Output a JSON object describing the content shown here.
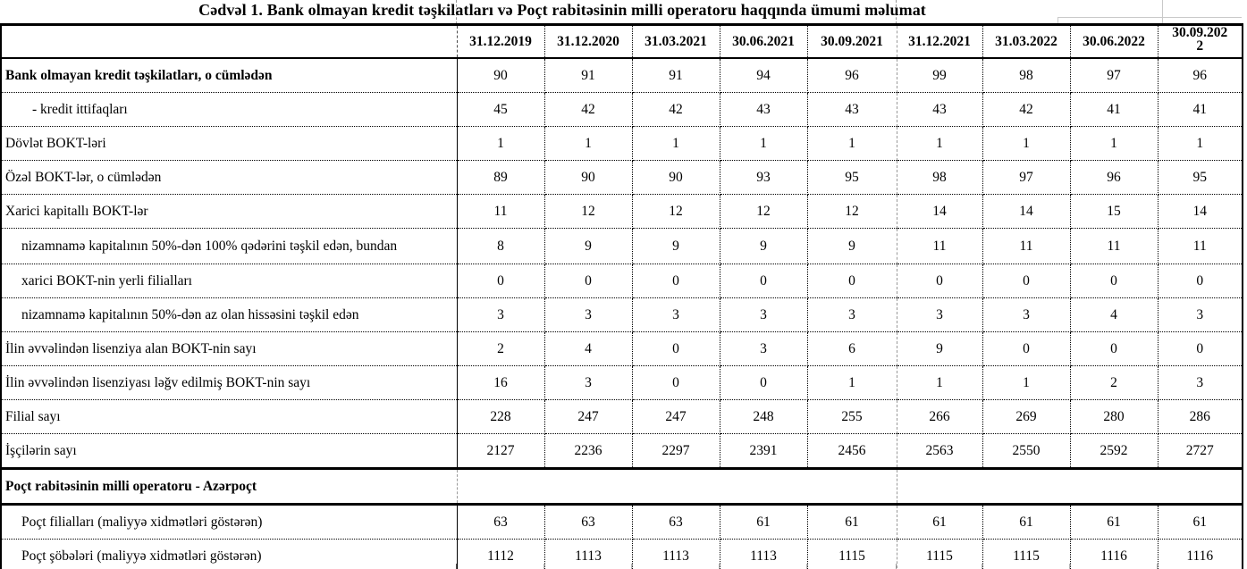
{
  "title": "Cədvəl 1. Bank olmayan kredit təşkilatları və Poçt rabitəsinin milli operatoru haqqında ümumi məlumat",
  "colors": {
    "text": "#000000",
    "border": "#000000",
    "page_break_line": "#9a9a9a",
    "gridline": "#c9c9c9",
    "background": "#ffffff"
  },
  "chart_data": {
    "type": "table",
    "title": "Cədvəl 1. Bank olmayan kredit təşkilatları və Poçt rabitəsinin milli operatoru haqqında ümumi məlumat",
    "columns": [
      "31.12.2019",
      "31.12.2020",
      "31.03.2021",
      "30.06.2021",
      "30.09.2021",
      "31.12.2021",
      "31.03.2022",
      "30.06.2022",
      "30.09.2022"
    ],
    "rows": [
      {
        "label": "Bank olmayan kredit təşkilatları, o cümlədən",
        "bold": true,
        "indent": 0,
        "values": [
          90,
          91,
          91,
          94,
          96,
          99,
          98,
          97,
          96
        ]
      },
      {
        "label": "- kredit ittifaqları",
        "bold": false,
        "indent": 1,
        "values": [
          45,
          42,
          42,
          43,
          43,
          43,
          42,
          41,
          41
        ]
      },
      {
        "label": "Dövlət BOKT-ləri",
        "bold": false,
        "indent": 0,
        "values": [
          1,
          1,
          1,
          1,
          1,
          1,
          1,
          1,
          1
        ]
      },
      {
        "label": "Özəl BOKT-lər, o cümlədən",
        "bold": false,
        "indent": 0,
        "values": [
          89,
          90,
          90,
          93,
          95,
          98,
          97,
          96,
          95
        ]
      },
      {
        "label": "Xarici kapitallı BOKT-lər",
        "bold": false,
        "indent": 0,
        "values": [
          11,
          12,
          12,
          12,
          12,
          14,
          14,
          15,
          14
        ]
      },
      {
        "label": "nizamnamə kapitalının 50%-dən 100% qədərini təşkil edən, bundan",
        "bold": false,
        "indent": 2,
        "twoline": true,
        "values": [
          8,
          9,
          9,
          9,
          9,
          11,
          11,
          11,
          11
        ]
      },
      {
        "label": "xarici BOKT-nin yerli filialları",
        "bold": false,
        "indent": 2,
        "values": [
          0,
          0,
          0,
          0,
          0,
          0,
          0,
          0,
          0
        ]
      },
      {
        "label": "nizamnamə kapitalının 50%-dən az olan hissəsini  təşkil edən",
        "bold": false,
        "indent": 2,
        "values": [
          3,
          3,
          3,
          3,
          3,
          3,
          3,
          4,
          3
        ]
      },
      {
        "label": "İlin əvvəlindən lisenziya alan BOKT-nin sayı",
        "bold": false,
        "indent": 0,
        "values": [
          2,
          4,
          0,
          3,
          6,
          9,
          0,
          0,
          0
        ]
      },
      {
        "label": "İlin əvvəlindən lisenziyası ləğv edilmiş BOKT-nin sayı",
        "bold": false,
        "indent": 0,
        "values": [
          16,
          3,
          0,
          0,
          1,
          1,
          1,
          2,
          3
        ]
      },
      {
        "label": "Filial sayı",
        "bold": false,
        "indent": 0,
        "values": [
          228,
          247,
          247,
          248,
          255,
          266,
          269,
          280,
          286
        ]
      },
      {
        "label": "İşçilərin sayı",
        "bold": false,
        "indent": 0,
        "values": [
          2127,
          2236,
          2297,
          2391,
          2456,
          2563,
          2550,
          2592,
          2727
        ]
      },
      {
        "label": "Poçt rabitəsinin milli operatoru - Azərpoçt",
        "bold": true,
        "indent": 0,
        "section": true,
        "values": [
          "",
          "",
          "",
          "",
          "",
          "",
          "",
          "",
          ""
        ]
      },
      {
        "label": "Poçt filialları (maliyyə xidmətləri göstərən)",
        "bold": false,
        "indent": 2,
        "values": [
          63,
          63,
          63,
          61,
          61,
          61,
          61,
          61,
          61
        ]
      },
      {
        "label": "Poçt şöbələri (maliyyə xidmətləri göstərən)",
        "bold": false,
        "indent": 2,
        "values": [
          1112,
          1113,
          1113,
          1113,
          1115,
          1115,
          1115,
          1116,
          1116
        ]
      }
    ]
  }
}
